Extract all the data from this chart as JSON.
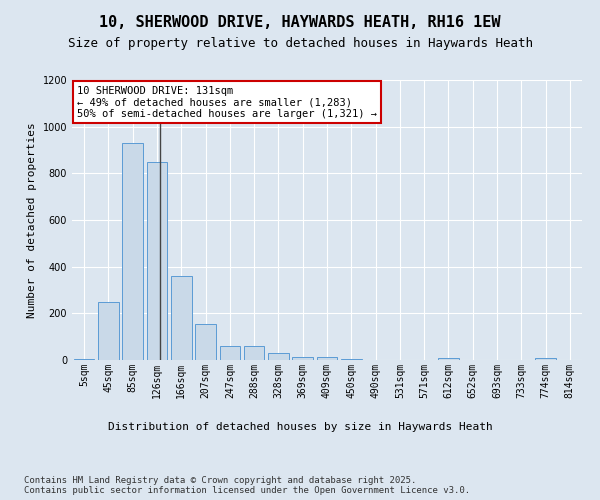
{
  "title": "10, SHERWOOD DRIVE, HAYWARDS HEATH, RH16 1EW",
  "subtitle": "Size of property relative to detached houses in Haywards Heath",
  "xlabel": "Distribution of detached houses by size in Haywards Heath",
  "ylabel": "Number of detached properties",
  "footnote": "Contains HM Land Registry data © Crown copyright and database right 2025.\nContains public sector information licensed under the Open Government Licence v3.0.",
  "categories": [
    "5sqm",
    "45sqm",
    "85sqm",
    "126sqm",
    "166sqm",
    "207sqm",
    "247sqm",
    "288sqm",
    "328sqm",
    "369sqm",
    "409sqm",
    "450sqm",
    "490sqm",
    "531sqm",
    "571sqm",
    "612sqm",
    "652sqm",
    "693sqm",
    "733sqm",
    "774sqm",
    "814sqm"
  ],
  "values": [
    5,
    248,
    930,
    848,
    358,
    155,
    62,
    62,
    28,
    12,
    12,
    5,
    0,
    0,
    0,
    8,
    0,
    0,
    0,
    8,
    0
  ],
  "bar_color": "#c9d9e8",
  "bar_edge_color": "#5b9bd5",
  "vline_color": "#444444",
  "annotation_text": "10 SHERWOOD DRIVE: 131sqm\n← 49% of detached houses are smaller (1,283)\n50% of semi-detached houses are larger (1,321) →",
  "annotation_box_color": "#ffffff",
  "annotation_box_edge": "#cc0000",
  "ylim": [
    0,
    1200
  ],
  "yticks": [
    0,
    200,
    400,
    600,
    800,
    1000,
    1200
  ],
  "bg_color": "#dce6f0",
  "plot_bg_color": "#dce6f0",
  "grid_color": "#ffffff",
  "title_fontsize": 11,
  "subtitle_fontsize": 9,
  "axis_label_fontsize": 8,
  "tick_fontsize": 7,
  "annotation_fontsize": 7.5,
  "footnote_fontsize": 6.5
}
